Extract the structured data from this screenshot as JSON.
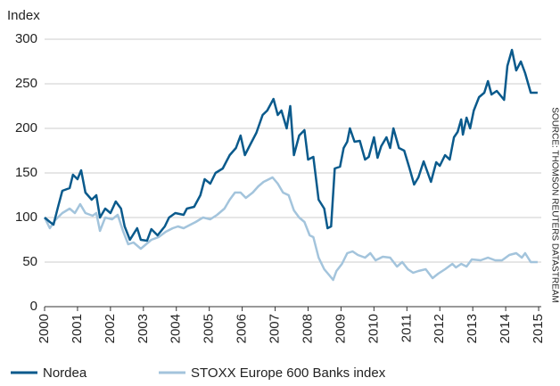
{
  "chart_data": {
    "type": "line",
    "y_label": "Index",
    "source": "SOURCE: THOMSON REUTERS DATASTREAM",
    "xlim": [
      2000,
      2015.08
    ],
    "xticks": [
      2000,
      2001,
      2002,
      2003,
      2004,
      2005,
      2006,
      2007,
      2008,
      2009,
      2010,
      2011,
      2012,
      2013,
      2014,
      2015
    ],
    "ylim": [
      0,
      300
    ],
    "yticks": [
      0,
      50,
      100,
      150,
      200,
      250,
      300
    ],
    "grid": true,
    "legend": "bottom",
    "series": [
      {
        "name": "Nordea",
        "color": "#0a5a8c",
        "x": [
          2000.0,
          2000.16,
          2000.27,
          2000.41,
          2000.54,
          2000.76,
          2000.86,
          2001.0,
          2001.11,
          2001.24,
          2001.43,
          2001.57,
          2001.68,
          2001.84,
          2002.0,
          2002.16,
          2002.32,
          2002.43,
          2002.59,
          2002.81,
          2002.92,
          2003.11,
          2003.24,
          2003.43,
          2003.65,
          2003.78,
          2003.97,
          2004.22,
          2004.32,
          2004.54,
          2004.73,
          2004.86,
          2005.03,
          2005.19,
          2005.41,
          2005.62,
          2005.81,
          2005.95,
          2006.08,
          2006.22,
          2006.43,
          2006.62,
          2006.76,
          2006.95,
          2007.08,
          2007.19,
          2007.35,
          2007.46,
          2007.57,
          2007.73,
          2007.89,
          2008.0,
          2008.16,
          2008.32,
          2008.49,
          2008.59,
          2008.7,
          2008.81,
          2008.97,
          2009.08,
          2009.19,
          2009.27,
          2009.41,
          2009.57,
          2009.73,
          2009.84,
          2010.0,
          2010.11,
          2010.22,
          2010.38,
          2010.49,
          2010.59,
          2010.76,
          2010.92,
          2011.08,
          2011.22,
          2011.35,
          2011.51,
          2011.73,
          2011.89,
          2012.0,
          2012.16,
          2012.3,
          2012.43,
          2012.54,
          2012.65,
          2012.7,
          2012.81,
          2012.92,
          2013.03,
          2013.19,
          2013.35,
          2013.46,
          2013.57,
          2013.73,
          2013.95,
          2014.05,
          2014.19,
          2014.32,
          2014.46,
          2014.59,
          2014.76,
          2014.97
        ],
        "values": [
          100,
          95,
          92,
          112,
          130,
          133,
          148,
          143,
          153,
          128,
          120,
          125,
          100,
          110,
          105,
          118,
          110,
          90,
          75,
          88,
          75,
          74,
          87,
          80,
          90,
          100,
          105,
          103,
          110,
          112,
          125,
          143,
          138,
          150,
          155,
          170,
          178,
          192,
          170,
          180,
          195,
          215,
          220,
          233,
          215,
          220,
          200,
          225,
          170,
          192,
          198,
          165,
          168,
          120,
          110,
          88,
          90,
          155,
          157,
          178,
          185,
          200,
          185,
          186,
          165,
          168,
          190,
          167,
          180,
          190,
          178,
          200,
          178,
          175,
          155,
          137,
          145,
          163,
          140,
          162,
          158,
          170,
          165,
          190,
          196,
          210,
          193,
          212,
          200,
          220,
          235,
          240,
          253,
          238,
          242,
          232,
          270,
          288,
          265,
          275,
          262,
          240,
          240
        ]
      },
      {
        "name": "STOXX Europe 600 Banks index",
        "color": "#a3c4dc",
        "x": [
          2000.0,
          2000.16,
          2000.32,
          2000.54,
          2000.76,
          2000.92,
          2001.08,
          2001.24,
          2001.46,
          2001.57,
          2001.68,
          2001.84,
          2002.05,
          2002.22,
          2002.38,
          2002.54,
          2002.7,
          2002.92,
          2003.08,
          2003.24,
          2003.46,
          2003.68,
          2003.89,
          2004.05,
          2004.22,
          2004.43,
          2004.59,
          2004.81,
          2005.03,
          2005.24,
          2005.46,
          2005.62,
          2005.78,
          2005.95,
          2006.11,
          2006.32,
          2006.49,
          2006.65,
          2006.76,
          2006.92,
          2007.08,
          2007.24,
          2007.41,
          2007.57,
          2007.73,
          2007.89,
          2008.05,
          2008.16,
          2008.32,
          2008.49,
          2008.65,
          2008.76,
          2008.86,
          2009.03,
          2009.19,
          2009.35,
          2009.51,
          2009.73,
          2009.89,
          2010.05,
          2010.27,
          2010.49,
          2010.7,
          2010.86,
          2011.03,
          2011.19,
          2011.35,
          2011.57,
          2011.78,
          2011.95,
          2012.16,
          2012.38,
          2012.49,
          2012.65,
          2012.81,
          2012.97,
          2013.24,
          2013.46,
          2013.68,
          2013.89,
          2014.11,
          2014.32,
          2014.49,
          2014.59,
          2014.76,
          2014.97
        ],
        "values": [
          100,
          88,
          97,
          105,
          110,
          105,
          115,
          105,
          102,
          105,
          85,
          100,
          98,
          103,
          85,
          70,
          72,
          65,
          70,
          75,
          78,
          84,
          88,
          90,
          88,
          92,
          95,
          100,
          98,
          103,
          110,
          120,
          128,
          128,
          122,
          128,
          135,
          140,
          142,
          145,
          138,
          128,
          125,
          108,
          100,
          95,
          80,
          78,
          55,
          42,
          35,
          30,
          40,
          48,
          60,
          62,
          58,
          55,
          60,
          52,
          56,
          55,
          45,
          50,
          42,
          38,
          40,
          42,
          32,
          37,
          42,
          48,
          44,
          48,
          45,
          53,
          52,
          55,
          52,
          52,
          58,
          60,
          55,
          60,
          50,
          50
        ]
      }
    ]
  }
}
